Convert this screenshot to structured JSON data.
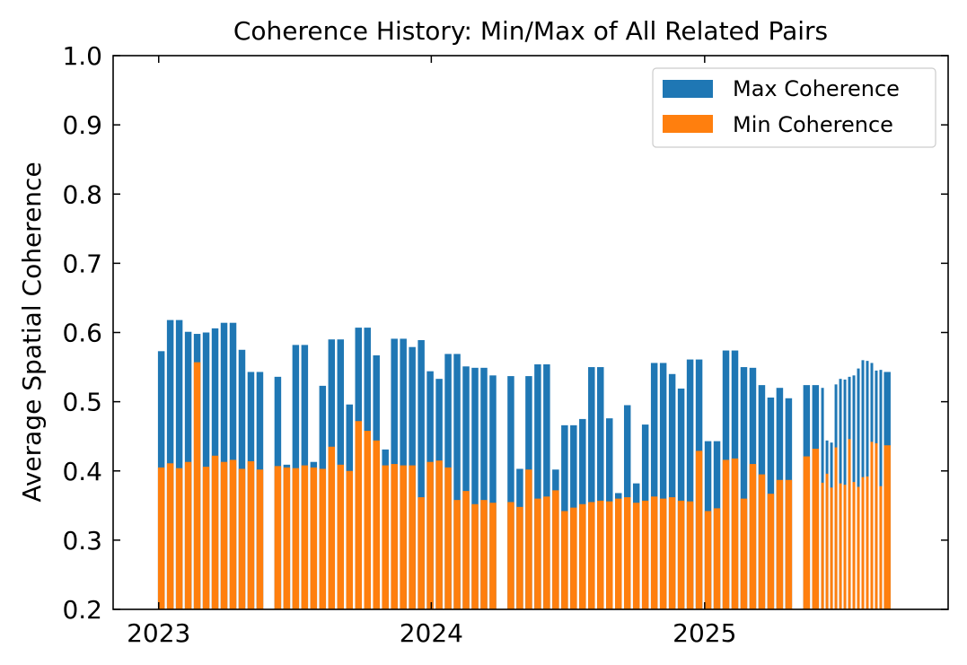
{
  "chart_data": {
    "type": "bar",
    "title": "Coherence History: Min/Max of All Related Pairs",
    "xlabel": "",
    "ylabel": "Average Spatial Coherence",
    "ylim": [
      0.2,
      1.0
    ],
    "xlim": [
      "2022-11-01",
      "2025-11-23"
    ],
    "yticks": [
      "0.2",
      "0.3",
      "0.4",
      "0.5",
      "0.6",
      "0.7",
      "0.8",
      "0.9",
      "1.0"
    ],
    "xticks": [
      {
        "date": "2023-01-01",
        "label": "2023"
      },
      {
        "date": "2024-01-01",
        "label": "2024"
      },
      {
        "date": "2025-01-01",
        "label": "2025"
      }
    ],
    "legend_position": "upper right",
    "grid": false,
    "colors": {
      "Max Coherence": "#1f77b4",
      "Min Coherence": "#ff7f0e"
    },
    "series": [
      {
        "name": "Max Coherence",
        "points": [
          [
            "2022-12-31",
            0.573
          ],
          [
            "2023-01-12",
            0.618
          ],
          [
            "2023-01-24",
            0.618
          ],
          [
            "2023-02-05",
            0.601
          ],
          [
            "2023-02-17",
            0.598
          ],
          [
            "2023-03-01",
            0.6
          ],
          [
            "2023-03-13",
            0.606
          ],
          [
            "2023-03-25",
            0.614
          ],
          [
            "2023-04-06",
            0.614
          ],
          [
            "2023-04-18",
            0.575
          ],
          [
            "2023-04-30",
            0.543
          ],
          [
            "2023-05-12",
            0.543
          ],
          [
            "2023-06-05",
            0.536
          ],
          [
            "2023-06-17",
            0.409
          ],
          [
            "2023-06-29",
            0.582
          ],
          [
            "2023-07-11",
            0.582
          ],
          [
            "2023-07-23",
            0.413
          ],
          [
            "2023-08-04",
            0.523
          ],
          [
            "2023-08-16",
            0.59
          ],
          [
            "2023-08-28",
            0.59
          ],
          [
            "2023-09-09",
            0.496
          ],
          [
            "2023-09-21",
            0.607
          ],
          [
            "2023-10-03",
            0.607
          ],
          [
            "2023-10-15",
            0.567
          ],
          [
            "2023-10-27",
            0.431
          ],
          [
            "2023-11-08",
            0.591
          ],
          [
            "2023-11-20",
            0.591
          ],
          [
            "2023-12-02",
            0.579
          ],
          [
            "2023-12-14",
            0.589
          ],
          [
            "2023-12-26",
            0.544
          ],
          [
            "2024-01-07",
            0.533
          ],
          [
            "2024-01-19",
            0.569
          ],
          [
            "2024-01-31",
            0.569
          ],
          [
            "2024-02-12",
            0.551
          ],
          [
            "2024-02-24",
            0.549
          ],
          [
            "2024-03-07",
            0.549
          ],
          [
            "2024-03-19",
            0.538
          ],
          [
            "2024-04-12",
            0.537
          ],
          [
            "2024-04-24",
            0.403
          ],
          [
            "2024-05-06",
            0.537
          ],
          [
            "2024-05-18",
            0.554
          ],
          [
            "2024-05-30",
            0.554
          ],
          [
            "2024-06-11",
            0.402
          ],
          [
            "2024-06-23",
            0.466
          ],
          [
            "2024-07-05",
            0.466
          ],
          [
            "2024-07-17",
            0.475
          ],
          [
            "2024-07-29",
            0.55
          ],
          [
            "2024-08-10",
            0.55
          ],
          [
            "2024-08-22",
            0.476
          ],
          [
            "2024-09-03",
            0.368
          ],
          [
            "2024-09-15",
            0.495
          ],
          [
            "2024-09-27",
            0.382
          ],
          [
            "2024-10-09",
            0.467
          ],
          [
            "2024-10-21",
            0.556
          ],
          [
            "2024-11-02",
            0.556
          ],
          [
            "2024-11-14",
            0.54
          ],
          [
            "2024-11-26",
            0.519
          ],
          [
            "2024-12-08",
            0.561
          ],
          [
            "2024-12-20",
            0.561
          ],
          [
            "2025-01-01",
            0.443
          ],
          [
            "2025-01-13",
            0.443
          ],
          [
            "2025-01-25",
            0.574
          ],
          [
            "2025-02-06",
            0.574
          ],
          [
            "2025-02-18",
            0.55
          ],
          [
            "2025-03-02",
            0.549
          ],
          [
            "2025-03-14",
            0.524
          ],
          [
            "2025-03-26",
            0.506
          ],
          [
            "2025-04-07",
            0.52
          ],
          [
            "2025-04-19",
            0.505
          ],
          [
            "2025-05-13",
            0.524
          ],
          [
            "2025-05-25",
            0.524
          ],
          [
            "2025-06-06",
            0.52
          ],
          [
            "2025-06-12",
            0.444
          ],
          [
            "2025-06-18",
            0.441
          ],
          [
            "2025-06-24",
            0.525
          ],
          [
            "2025-06-30",
            0.533
          ],
          [
            "2025-07-06",
            0.532
          ],
          [
            "2025-07-12",
            0.536
          ],
          [
            "2025-07-18",
            0.538
          ],
          [
            "2025-07-24",
            0.548
          ],
          [
            "2025-07-30",
            0.56
          ],
          [
            "2025-08-05",
            0.559
          ],
          [
            "2025-08-11",
            0.556
          ],
          [
            "2025-08-17",
            0.545
          ],
          [
            "2025-08-23",
            0.546
          ],
          [
            "2025-08-29",
            0.543
          ]
        ]
      },
      {
        "name": "Min Coherence",
        "points": [
          [
            "2022-12-31",
            0.405
          ],
          [
            "2023-01-12",
            0.411
          ],
          [
            "2023-01-24",
            0.404
          ],
          [
            "2023-02-05",
            0.413
          ],
          [
            "2023-02-17",
            0.557
          ],
          [
            "2023-03-01",
            0.406
          ],
          [
            "2023-03-13",
            0.422
          ],
          [
            "2023-03-25",
            0.413
          ],
          [
            "2023-04-06",
            0.416
          ],
          [
            "2023-04-18",
            0.403
          ],
          [
            "2023-04-30",
            0.414
          ],
          [
            "2023-05-12",
            0.402
          ],
          [
            "2023-06-05",
            0.407
          ],
          [
            "2023-06-17",
            0.405
          ],
          [
            "2023-06-29",
            0.404
          ],
          [
            "2023-07-11",
            0.408
          ],
          [
            "2023-07-23",
            0.405
          ],
          [
            "2023-08-04",
            0.403
          ],
          [
            "2023-08-16",
            0.435
          ],
          [
            "2023-08-28",
            0.409
          ],
          [
            "2023-09-09",
            0.4
          ],
          [
            "2023-09-21",
            0.472
          ],
          [
            "2023-10-03",
            0.458
          ],
          [
            "2023-10-15",
            0.444
          ],
          [
            "2023-10-27",
            0.408
          ],
          [
            "2023-11-08",
            0.41
          ],
          [
            "2023-11-20",
            0.408
          ],
          [
            "2023-12-02",
            0.408
          ],
          [
            "2023-12-14",
            0.362
          ],
          [
            "2023-12-26",
            0.413
          ],
          [
            "2024-01-07",
            0.415
          ],
          [
            "2024-01-19",
            0.405
          ],
          [
            "2024-01-31",
            0.358
          ],
          [
            "2024-02-12",
            0.371
          ],
          [
            "2024-02-24",
            0.352
          ],
          [
            "2024-03-07",
            0.358
          ],
          [
            "2024-03-19",
            0.354
          ],
          [
            "2024-04-12",
            0.355
          ],
          [
            "2024-04-24",
            0.348
          ],
          [
            "2024-05-06",
            0.402
          ],
          [
            "2024-05-18",
            0.36
          ],
          [
            "2024-05-30",
            0.363
          ],
          [
            "2024-06-11",
            0.372
          ],
          [
            "2024-06-23",
            0.342
          ],
          [
            "2024-07-05",
            0.347
          ],
          [
            "2024-07-17",
            0.352
          ],
          [
            "2024-07-29",
            0.355
          ],
          [
            "2024-08-10",
            0.357
          ],
          [
            "2024-08-22",
            0.356
          ],
          [
            "2024-09-03",
            0.36
          ],
          [
            "2024-09-15",
            0.362
          ],
          [
            "2024-09-27",
            0.354
          ],
          [
            "2024-10-09",
            0.357
          ],
          [
            "2024-10-21",
            0.363
          ],
          [
            "2024-11-02",
            0.36
          ],
          [
            "2024-11-14",
            0.362
          ],
          [
            "2024-11-26",
            0.357
          ],
          [
            "2024-12-08",
            0.356
          ],
          [
            "2024-12-20",
            0.429
          ],
          [
            "2025-01-01",
            0.342
          ],
          [
            "2025-01-13",
            0.346
          ],
          [
            "2025-01-25",
            0.416
          ],
          [
            "2025-02-06",
            0.418
          ],
          [
            "2025-02-18",
            0.36
          ],
          [
            "2025-03-02",
            0.41
          ],
          [
            "2025-03-14",
            0.395
          ],
          [
            "2025-03-26",
            0.367
          ],
          [
            "2025-04-07",
            0.387
          ],
          [
            "2025-04-19",
            0.387
          ],
          [
            "2025-05-13",
            0.421
          ],
          [
            "2025-05-25",
            0.432
          ],
          [
            "2025-06-06",
            0.383
          ],
          [
            "2025-06-12",
            0.396
          ],
          [
            "2025-06-18",
            0.376
          ],
          [
            "2025-06-24",
            0.434
          ],
          [
            "2025-06-30",
            0.382
          ],
          [
            "2025-07-06",
            0.38
          ],
          [
            "2025-07-12",
            0.446
          ],
          [
            "2025-07-18",
            0.384
          ],
          [
            "2025-07-24",
            0.377
          ],
          [
            "2025-07-30",
            0.391
          ],
          [
            "2025-08-05",
            0.392
          ],
          [
            "2025-08-11",
            0.442
          ],
          [
            "2025-08-17",
            0.44
          ],
          [
            "2025-08-23",
            0.378
          ],
          [
            "2025-08-29",
            0.437
          ]
        ]
      }
    ]
  }
}
